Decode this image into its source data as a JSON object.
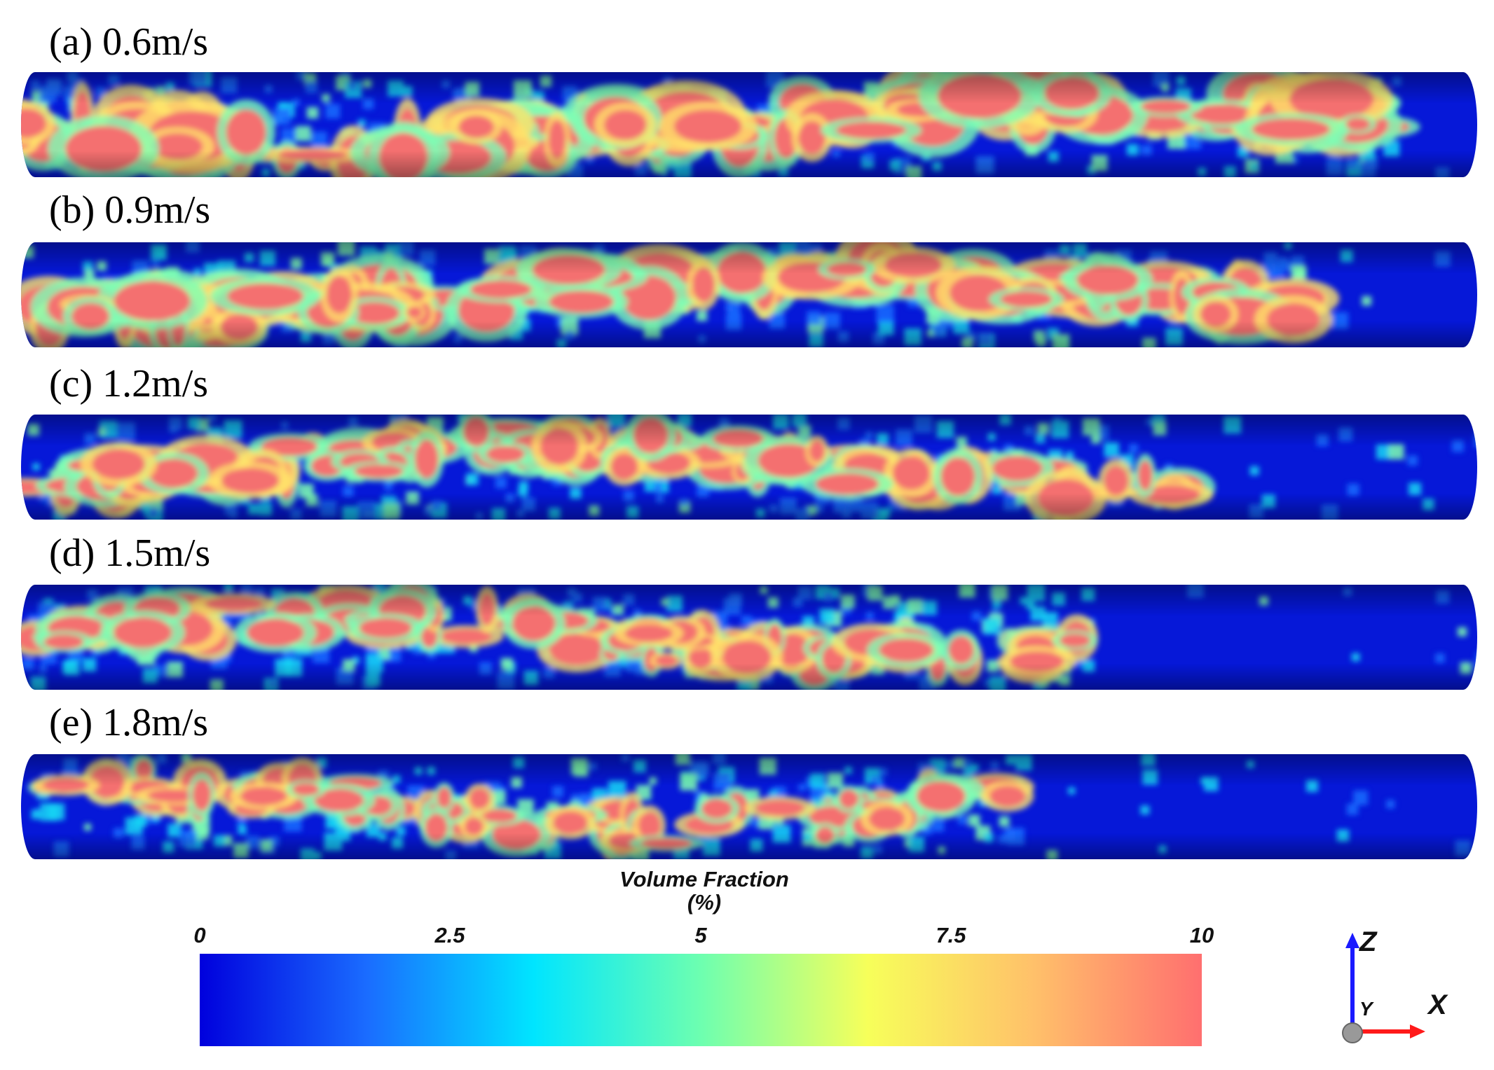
{
  "panels": [
    {
      "label": "(a) 0.6m/s",
      "fill": 0.9
    },
    {
      "label": "(b) 0.9m/s",
      "fill": 0.75
    },
    {
      "label": "(c) 1.2m/s",
      "fill": 0.55
    },
    {
      "label": "(d) 1.5m/s",
      "fill": 0.4
    },
    {
      "label": "(e) 1.8m/s",
      "fill": 0.3
    }
  ],
  "colorbar": {
    "title_line1": "Volume Fraction",
    "title_line2": "(%)",
    "ticks": [
      "0",
      "2.5",
      "5",
      "7.5",
      "10"
    ],
    "colors": [
      "#0000dd",
      "#1a6cff",
      "#00e5ff",
      "#6dffb0",
      "#f7ff5a",
      "#ffc06a",
      "#ff6f6f"
    ]
  },
  "axes": {
    "z": "Z",
    "y": "Y",
    "x": "X",
    "z_color": "#1a1aff",
    "x_color": "#ff1a1a"
  }
}
